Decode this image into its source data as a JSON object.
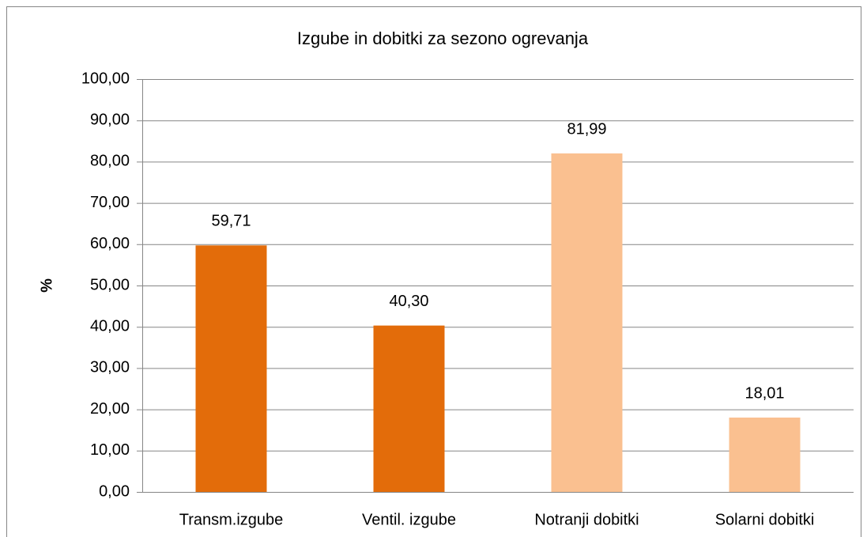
{
  "chart_data": {
    "type": "bar",
    "title": "Izgube in dobitki za sezono ogrevanja",
    "y_label": "%",
    "categories": [
      "Transm.izgube",
      "Ventil. izgube",
      "Notranji dobitki",
      "Solarni dobitki"
    ],
    "values": [
      59.71,
      40.3,
      81.99,
      18.01
    ],
    "value_labels": [
      "59,71",
      "40,30",
      "81,99",
      "18,01"
    ],
    "colors": [
      "#e36c0a",
      "#e36c0a",
      "#fac090",
      "#fac090"
    ],
    "ylim": [
      0,
      100
    ],
    "yticks": [
      {
        "value": 0,
        "label": "0,00"
      },
      {
        "value": 10,
        "label": "10,00"
      },
      {
        "value": 20,
        "label": "20,00"
      },
      {
        "value": 30,
        "label": "30,00"
      },
      {
        "value": 40,
        "label": "40,00"
      },
      {
        "value": 50,
        "label": "50,00"
      },
      {
        "value": 60,
        "label": "60,00"
      },
      {
        "value": 70,
        "label": "70,00"
      },
      {
        "value": 80,
        "label": "80,00"
      },
      {
        "value": 90,
        "label": "90,00"
      },
      {
        "value": 100,
        "label": "100,00"
      }
    ],
    "grid": true
  }
}
